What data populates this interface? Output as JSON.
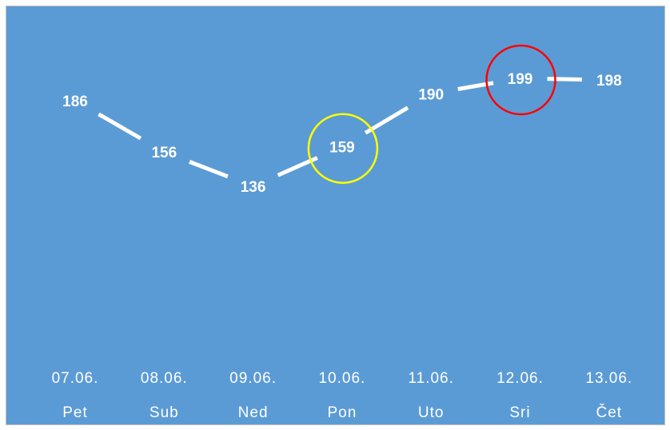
{
  "chart_data": {
    "type": "line",
    "categories": [
      "07.06.",
      "08.06.",
      "09.06.",
      "10.06.",
      "11.06.",
      "12.06.",
      "13.06."
    ],
    "days": [
      "Pet",
      "Sub",
      "Ned",
      "Pon",
      "Uto",
      "Sri",
      "Čet"
    ],
    "values": [
      186,
      156,
      136,
      159,
      190,
      199,
      198
    ],
    "ylim": [
      0,
      215
    ],
    "grid": false,
    "legend": "none",
    "highlights": [
      {
        "category": "10.06.",
        "color": "#ffff00"
      },
      {
        "category": "12.06.",
        "color": "#ff0000"
      }
    ]
  },
  "colors": {
    "background": "#5b9bd5",
    "line": "#ffffff",
    "drop_lines": "#ffffff"
  }
}
